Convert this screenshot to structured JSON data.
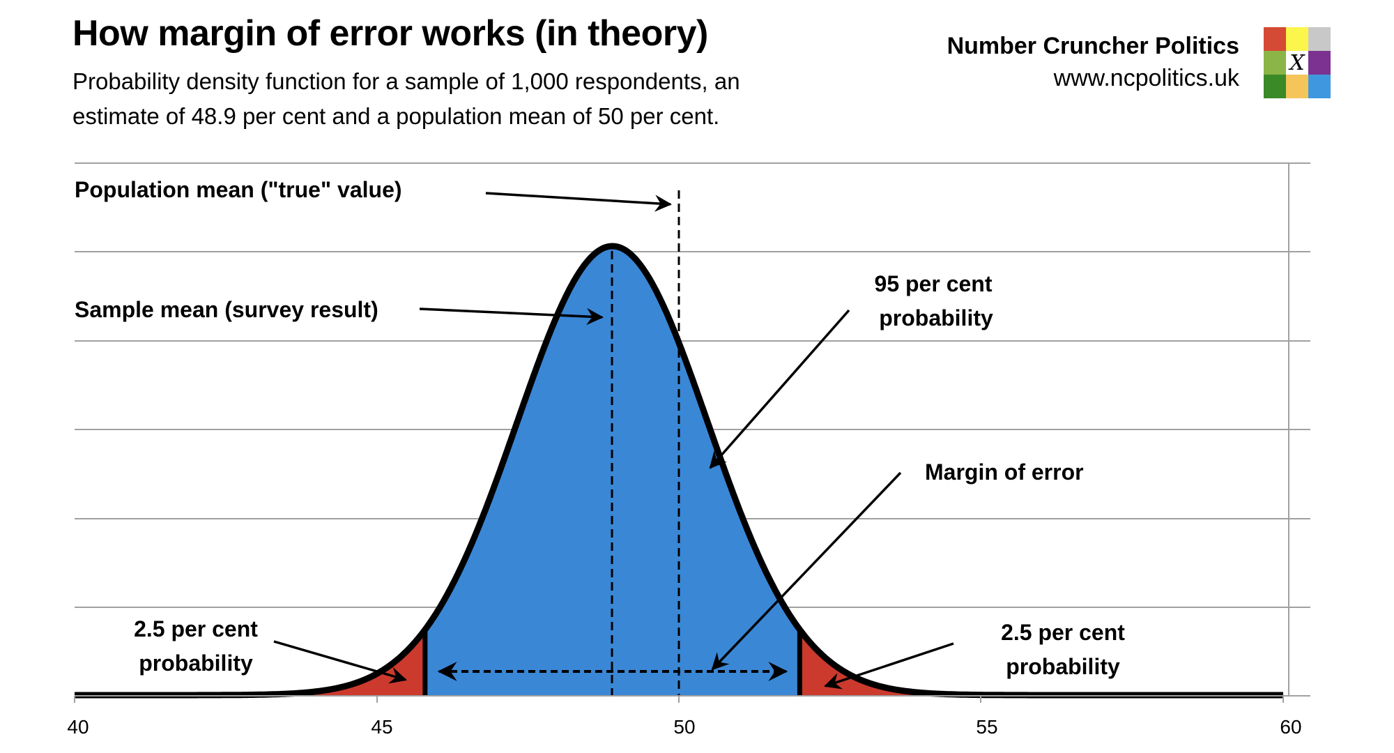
{
  "header": {
    "title": "How margin of error works (in theory)",
    "subtitle_line1": "Probability density function for a sample of 1,000 respondents, an",
    "subtitle_line2": "estimate of 48.9 per cent and a population mean of 50 per cent."
  },
  "brand": {
    "name": "Number Cruncher Politics",
    "url": "www.ncpolitics.uk",
    "logo_colors": [
      "#d54a35",
      "#fcf54c",
      "#c8c8c8",
      "#8bb546",
      "#ffffff",
      "#7b3290",
      "#3a8a27",
      "#f5c55a",
      "#3f98df"
    ],
    "logo_center_glyph": "X"
  },
  "annotations": {
    "population_mean": "Population mean (\"true\" value)",
    "sample_mean": "Sample mean (survey result)",
    "ninety_five_line1": "95 per cent",
    "ninety_five_line2": "probability",
    "margin_of_error": "Margin of error",
    "left_tail_line1": "2.5 per cent",
    "left_tail_line2": "probability",
    "right_tail_line1": "2.5 per cent",
    "right_tail_line2": "probability"
  },
  "axis": {
    "x_ticks": [
      "40",
      "45",
      "50",
      "55",
      "60"
    ]
  },
  "colors": {
    "center_fill": "#3a87d6",
    "tail_fill": "#cc3a2e",
    "curve": "#000000",
    "grid": "#a0a0a0"
  },
  "chart_data": {
    "type": "area",
    "title": "How margin of error works (in theory)",
    "subtitle": "Probability density function for a sample of 1,000 respondents, an estimate of 48.9 per cent and a population mean of 50 per cent.",
    "xlabel": "",
    "ylabel": "",
    "xlim": [
      40,
      60
    ],
    "x_ticks": [
      40,
      45,
      50,
      55,
      60
    ],
    "grid": true,
    "distribution": {
      "kind": "normal",
      "mean": 48.9,
      "std_error": 1.58,
      "sample_size": 1000
    },
    "sample_mean": 48.9,
    "population_mean": 50,
    "confidence_interval_95": [
      45.8,
      52.0
    ],
    "regions": [
      {
        "name": "left tail",
        "range": [
          40,
          45.8
        ],
        "probability_pct": 2.5,
        "color": "#cc3a2e"
      },
      {
        "name": "central",
        "range": [
          45.8,
          52.0
        ],
        "probability_pct": 95,
        "color": "#3a87d6"
      },
      {
        "name": "right tail",
        "range": [
          52.0,
          60
        ],
        "probability_pct": 2.5,
        "color": "#cc3a2e"
      }
    ],
    "annotations": [
      "Population mean (\"true\" value)",
      "Sample mean (survey result)",
      "95 per cent probability",
      "Margin of error",
      "2.5 per cent probability",
      "2.5 per cent probability"
    ]
  }
}
